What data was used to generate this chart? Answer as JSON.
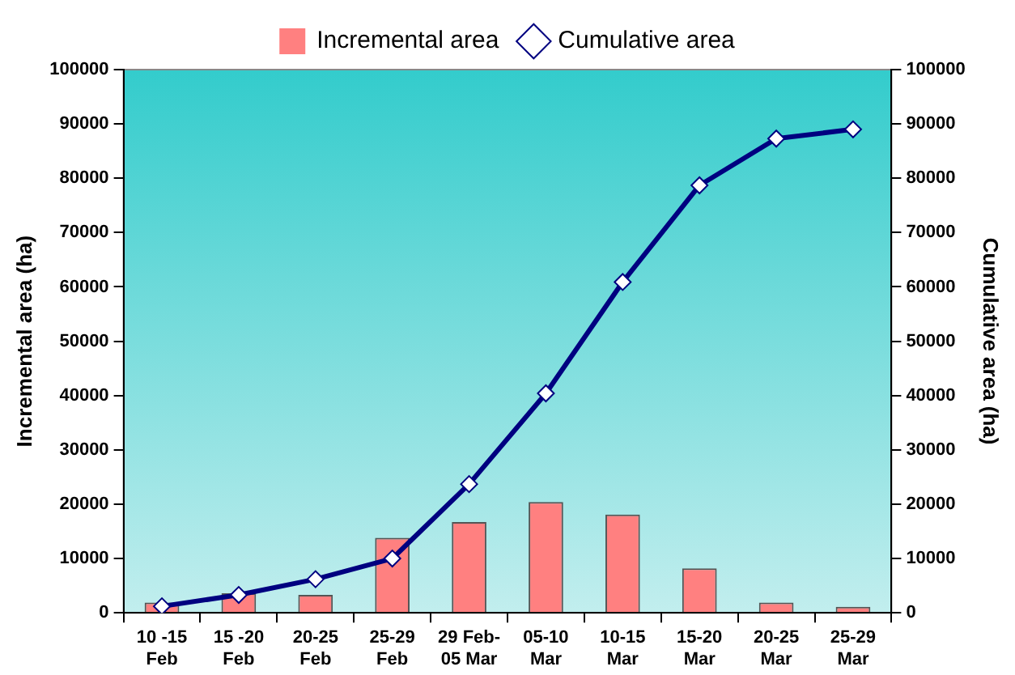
{
  "chart_data": {
    "type": "bar",
    "categories": [
      "10 -15\nFeb",
      "15 -20\nFeb",
      "20-25\nFeb",
      "25-29\nFeb",
      "29 Feb-\n05 Mar",
      "05-10\nMar",
      "10-15\nMar",
      "15-20\nMar",
      "20-25\nMar",
      "25-29\nMar"
    ],
    "series": [
      {
        "name": "Incremental area",
        "color": "#ff8080",
        "values": [
          1900,
          3600,
          3300,
          13800,
          16700,
          20400,
          18100,
          8200,
          1900,
          1100
        ]
      },
      {
        "name": "Cumulative area",
        "type": "line",
        "axis": "y2",
        "color": "#000080",
        "values": [
          1200,
          3300,
          6200,
          10000,
          23700,
          40400,
          60900,
          78700,
          87300,
          89000
        ]
      }
    ],
    "ylabel": "Incremental area (ha)",
    "y2label": "Cumulative area (ha)",
    "ylim": [
      0,
      100000
    ],
    "yticks": [
      0,
      10000,
      20000,
      30000,
      40000,
      50000,
      60000,
      70000,
      80000,
      90000,
      100000
    ],
    "y2lim": [
      0,
      100000
    ],
    "y2ticks": [
      0,
      10000,
      20000,
      30000,
      40000,
      50000,
      60000,
      70000,
      80000,
      90000,
      100000
    ],
    "legend": "top",
    "marker": "diamond",
    "grid": false
  }
}
